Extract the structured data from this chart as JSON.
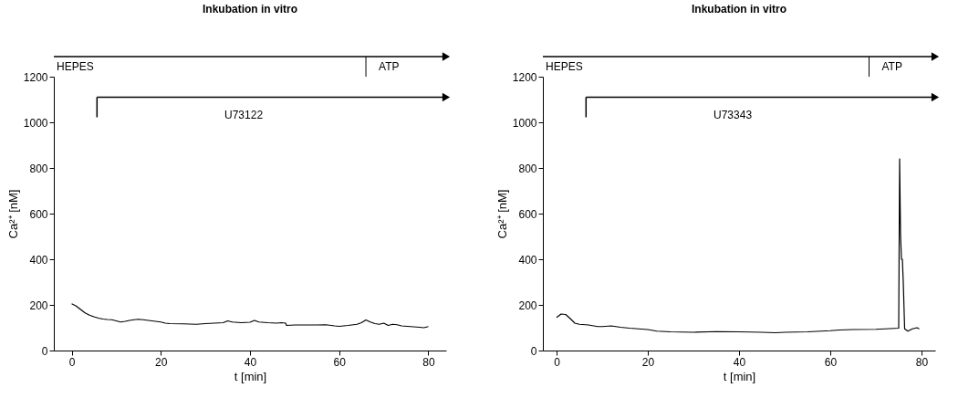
{
  "chart_data": [
    {
      "type": "line",
      "title": "Inkubation in vitro",
      "xlabel": "t [min]",
      "ylabel": "Ca²⁺ [nM]",
      "xlim": [
        -4,
        84
      ],
      "ylim": [
        0,
        1200
      ],
      "xticks": [
        0,
        20,
        40,
        60,
        80
      ],
      "yticks": [
        0,
        200,
        400,
        600,
        800,
        1000,
        1200
      ],
      "annotations": [
        "HEPES",
        "U73122"
      ],
      "ref_lines": [
        {
          "axis": "x",
          "value": 66,
          "label": "ATP"
        },
        {
          "axis": "y",
          "value": 1110
        }
      ],
      "series": [
        {
          "color": "#000000",
          "x": [
            0,
            1,
            2,
            3,
            4,
            5,
            6,
            7,
            8,
            9,
            10,
            11,
            12,
            13,
            14,
            15,
            16,
            18,
            20,
            21,
            22,
            25,
            28,
            30,
            32,
            34,
            35,
            36,
            38,
            40,
            41,
            42,
            44,
            46,
            47,
            48,
            48.2,
            50,
            52,
            55,
            57,
            59,
            60,
            62,
            64,
            65,
            66,
            67,
            68,
            69,
            70,
            71,
            72,
            73,
            74,
            76,
            78,
            79,
            80
          ],
          "values": [
            205,
            195,
            180,
            165,
            155,
            148,
            142,
            138,
            136,
            135,
            130,
            125,
            128,
            132,
            135,
            137,
            135,
            130,
            125,
            120,
            118,
            117,
            115,
            118,
            120,
            122,
            130,
            125,
            122,
            124,
            132,
            125,
            122,
            120,
            122,
            120,
            110,
            112,
            112,
            112,
            113,
            108,
            106,
            110,
            115,
            122,
            134,
            125,
            118,
            115,
            120,
            110,
            115,
            113,
            108,
            105,
            102,
            100,
            105
          ]
        }
      ]
    },
    {
      "type": "line",
      "title": "Inkubation in vitro",
      "xlabel": "t [min]",
      "ylabel": "Ca²⁺ [nM]",
      "xlim": [
        -3,
        83
      ],
      "ylim": [
        0,
        1200
      ],
      "xticks": [
        0,
        20,
        40,
        60,
        80
      ],
      "yticks": [
        0,
        200,
        400,
        600,
        800,
        1000,
        1200
      ],
      "annotations": [
        "HEPES",
        "U73343"
      ],
      "ref_lines": [
        {
          "axis": "x",
          "value": 68.5,
          "label": "ATP"
        },
        {
          "axis": "y",
          "value": 1110
        }
      ],
      "series": [
        {
          "color": "#000000",
          "x": [
            0,
            1,
            2,
            3,
            4,
            5,
            7,
            9,
            10,
            12,
            14,
            16,
            18,
            20,
            22,
            25,
            30,
            35,
            40,
            45,
            48,
            50,
            55,
            58,
            60,
            62,
            65,
            70,
            72,
            74,
            75,
            75.2,
            75.4,
            75.6,
            75.8,
            76,
            76.3,
            77,
            78,
            79,
            79.5
          ],
          "values": [
            145,
            160,
            158,
            140,
            120,
            115,
            112,
            105,
            105,
            108,
            102,
            98,
            95,
            92,
            85,
            82,
            80,
            83,
            82,
            80,
            78,
            80,
            82,
            85,
            87,
            90,
            92,
            93,
            95,
            97,
            98,
            840,
            510,
            400,
            400,
            300,
            95,
            85,
            95,
            100,
            95
          ]
        }
      ]
    }
  ]
}
